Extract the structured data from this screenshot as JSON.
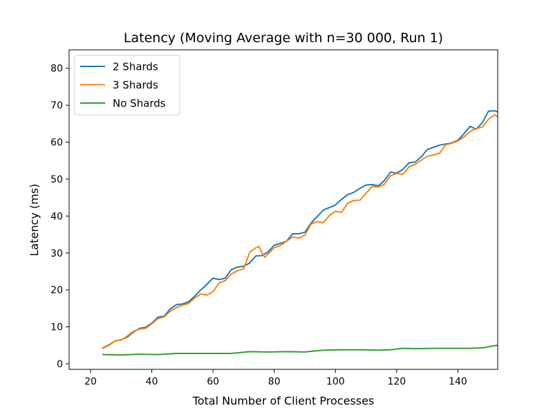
{
  "chart_data": {
    "type": "line",
    "title": "Latency (Moving Average with n=30 000, Run 1)",
    "xlabel": "Total Number of Client Processes",
    "ylabel": "Latency (ms)",
    "xlim": [
      13,
      153
    ],
    "ylim": [
      -1.5,
      85
    ],
    "xticks": [
      20,
      40,
      60,
      80,
      100,
      120,
      140
    ],
    "yticks": [
      0,
      10,
      20,
      30,
      40,
      50,
      60,
      70,
      80
    ],
    "legend_position": "top-left",
    "grid": false,
    "series": [
      {
        "name": "2 Shards",
        "color": "#1f77b4",
        "points": [
          [
            24,
            4.3
          ],
          [
            26,
            5.1
          ],
          [
            28,
            6.2
          ],
          [
            30,
            6.5
          ],
          [
            32,
            7.2
          ],
          [
            34,
            8.6
          ],
          [
            36,
            9.6
          ],
          [
            38,
            9.9
          ],
          [
            40,
            11.0
          ],
          [
            42,
            12.6
          ],
          [
            44,
            12.9
          ],
          [
            46,
            14.8
          ],
          [
            48,
            16.0
          ],
          [
            50,
            16.2
          ],
          [
            52,
            16.8
          ],
          [
            54,
            18.3
          ],
          [
            56,
            20.0
          ],
          [
            58,
            21.5
          ],
          [
            60,
            23.2
          ],
          [
            62,
            22.8
          ],
          [
            64,
            23.2
          ],
          [
            66,
            25.5
          ],
          [
            68,
            26.2
          ],
          [
            70,
            26.4
          ],
          [
            72,
            27.3
          ],
          [
            74,
            29.2
          ],
          [
            76,
            29.3
          ],
          [
            78,
            30.3
          ],
          [
            80,
            32.1
          ],
          [
            82,
            32.6
          ],
          [
            84,
            33.2
          ],
          [
            86,
            35.2
          ],
          [
            88,
            35.2
          ],
          [
            90,
            35.6
          ],
          [
            92,
            38.1
          ],
          [
            94,
            39.8
          ],
          [
            96,
            41.6
          ],
          [
            98,
            42.3
          ],
          [
            100,
            43.0
          ],
          [
            102,
            44.5
          ],
          [
            104,
            45.8
          ],
          [
            106,
            46.4
          ],
          [
            108,
            47.5
          ],
          [
            110,
            48.4
          ],
          [
            112,
            48.5
          ],
          [
            114,
            48.2
          ],
          [
            116,
            49.6
          ],
          [
            118,
            51.9
          ],
          [
            120,
            51.6
          ],
          [
            122,
            52.6
          ],
          [
            124,
            54.4
          ],
          [
            126,
            54.6
          ],
          [
            128,
            56.0
          ],
          [
            130,
            58.0
          ],
          [
            132,
            58.6
          ],
          [
            134,
            59.2
          ],
          [
            136,
            59.5
          ],
          [
            138,
            59.8
          ],
          [
            140,
            60.5
          ],
          [
            142,
            62.3
          ],
          [
            144,
            64.3
          ],
          [
            146,
            63.5
          ],
          [
            148,
            65.3
          ],
          [
            150,
            68.4
          ],
          [
            152,
            68.5
          ],
          [
            153,
            68.2
          ]
        ]
      },
      {
        "name": "3 Shards",
        "color": "#ff7f0e",
        "points": [
          [
            24,
            4.2
          ],
          [
            26,
            5.0
          ],
          [
            28,
            6.2
          ],
          [
            30,
            6.4
          ],
          [
            32,
            7.5
          ],
          [
            34,
            8.8
          ],
          [
            36,
            9.4
          ],
          [
            38,
            9.6
          ],
          [
            40,
            10.8
          ],
          [
            42,
            12.2
          ],
          [
            44,
            12.7
          ],
          [
            46,
            14.2
          ],
          [
            48,
            15.2
          ],
          [
            50,
            15.9
          ],
          [
            52,
            16.3
          ],
          [
            54,
            17.8
          ],
          [
            56,
            18.9
          ],
          [
            58,
            18.6
          ],
          [
            60,
            19.5
          ],
          [
            62,
            21.9
          ],
          [
            64,
            22.5
          ],
          [
            66,
            24.3
          ],
          [
            68,
            25.2
          ],
          [
            70,
            25.7
          ],
          [
            72,
            30.2
          ],
          [
            74,
            31.4
          ],
          [
            75,
            31.8
          ],
          [
            76,
            30.0
          ],
          [
            77,
            28.8
          ],
          [
            78,
            29.8
          ],
          [
            80,
            31.4
          ],
          [
            82,
            32.0
          ],
          [
            84,
            33.2
          ],
          [
            86,
            34.3
          ],
          [
            88,
            34.0
          ],
          [
            90,
            34.8
          ],
          [
            92,
            37.8
          ],
          [
            94,
            38.5
          ],
          [
            96,
            38.2
          ],
          [
            98,
            40.1
          ],
          [
            100,
            41.3
          ],
          [
            102,
            41.0
          ],
          [
            104,
            43.5
          ],
          [
            106,
            44.2
          ],
          [
            108,
            44.3
          ],
          [
            110,
            46.2
          ],
          [
            112,
            48.0
          ],
          [
            114,
            47.9
          ],
          [
            116,
            48.6
          ],
          [
            118,
            50.9
          ],
          [
            120,
            51.5
          ],
          [
            122,
            51.3
          ],
          [
            124,
            53.3
          ],
          [
            126,
            54.0
          ],
          [
            128,
            55.1
          ],
          [
            130,
            56.2
          ],
          [
            132,
            56.5
          ],
          [
            134,
            57.0
          ],
          [
            136,
            59.3
          ],
          [
            138,
            59.7
          ],
          [
            140,
            60.3
          ],
          [
            142,
            61.4
          ],
          [
            144,
            62.9
          ],
          [
            146,
            63.7
          ],
          [
            148,
            64.1
          ],
          [
            150,
            66.2
          ],
          [
            152,
            67.4
          ],
          [
            153,
            66.9
          ]
        ]
      },
      {
        "name": "No Shards",
        "color": "#2ca02c",
        "points": [
          [
            24,
            2.5
          ],
          [
            30,
            2.4
          ],
          [
            36,
            2.6
          ],
          [
            42,
            2.5
          ],
          [
            48,
            2.8
          ],
          [
            54,
            2.8
          ],
          [
            60,
            2.8
          ],
          [
            66,
            2.8
          ],
          [
            72,
            3.3
          ],
          [
            78,
            3.2
          ],
          [
            84,
            3.3
          ],
          [
            90,
            3.2
          ],
          [
            96,
            3.7
          ],
          [
            102,
            3.8
          ],
          [
            108,
            3.8
          ],
          [
            114,
            3.7
          ],
          [
            118,
            3.8
          ],
          [
            122,
            4.2
          ],
          [
            126,
            4.1
          ],
          [
            132,
            4.2
          ],
          [
            138,
            4.2
          ],
          [
            144,
            4.2
          ],
          [
            148,
            4.3
          ],
          [
            151,
            4.8
          ],
          [
            153,
            5.0
          ]
        ]
      }
    ]
  }
}
